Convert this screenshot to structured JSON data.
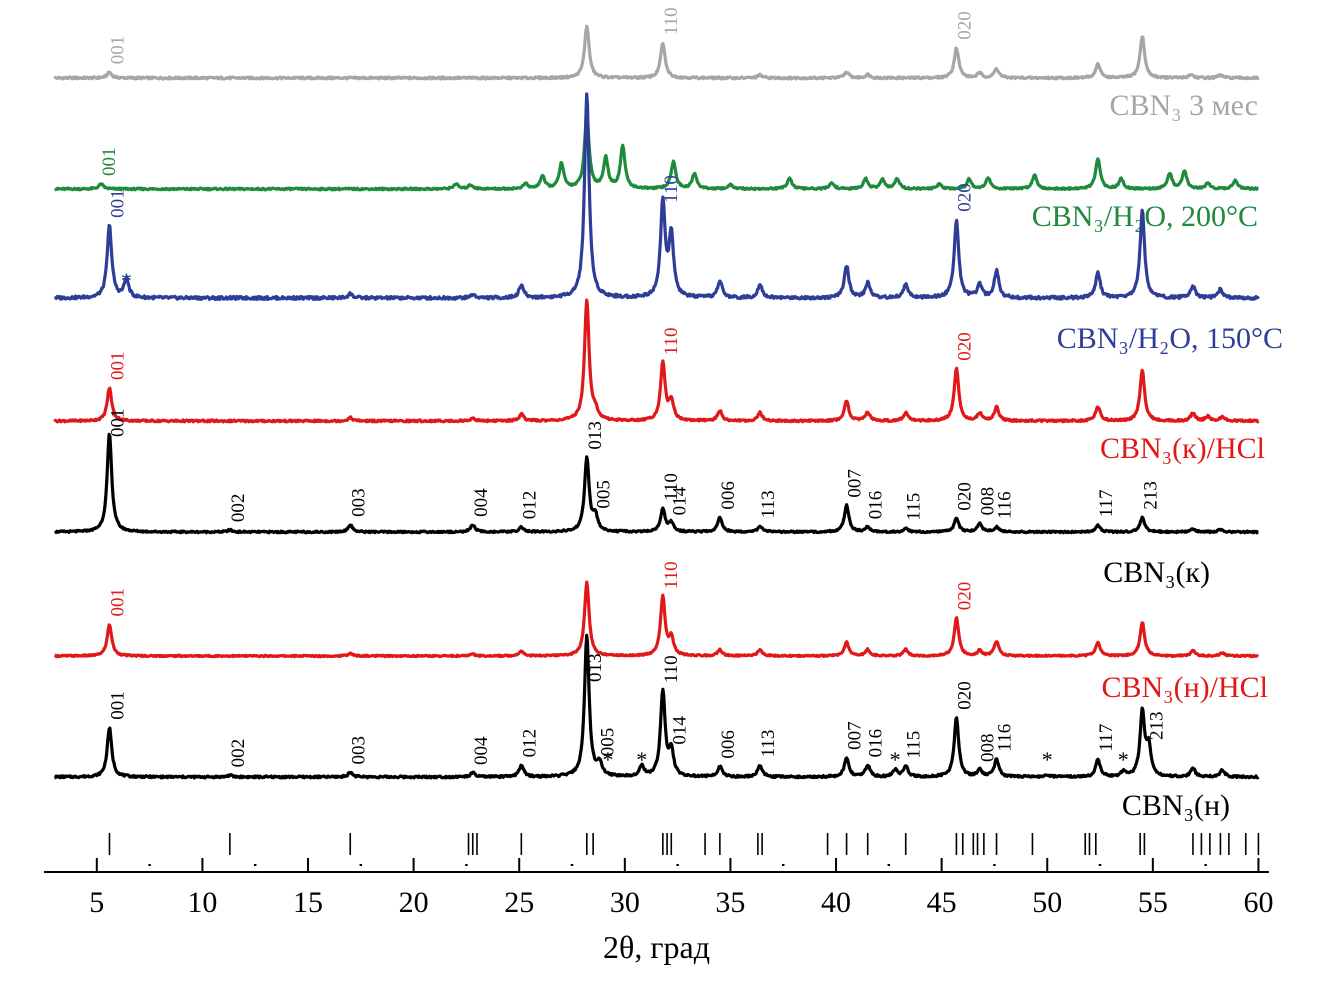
{
  "chart_data": {
    "type": "line",
    "xlabel": "2θ, град",
    "xlim": [
      2.5,
      60.5
    ],
    "x_ticks": [
      5,
      10,
      15,
      20,
      25,
      30,
      35,
      40,
      45,
      50,
      55,
      60
    ],
    "minor_ticks": [
      7.5,
      12.5,
      17.5,
      22.5,
      27.5,
      32.5,
      37.5,
      42.5,
      47.5,
      52.5,
      57.5
    ],
    "reference_lines": [
      5.6,
      11.3,
      17.0,
      22.6,
      22.8,
      23.0,
      25.1,
      28.2,
      28.5,
      31.8,
      32.0,
      32.2,
      33.8,
      34.5,
      36.3,
      36.5,
      39.6,
      40.5,
      41.5,
      43.3,
      45.7,
      46.0,
      46.5,
      46.7,
      47.0,
      47.6,
      49.3,
      51.8,
      52.0,
      52.3,
      54.4,
      54.6,
      56.9,
      57.3,
      57.7,
      58.2,
      58.6,
      59.4,
      60.0
    ],
    "series": [
      {
        "name": "CBN₃ 3 мес",
        "color": "#a6a6a6",
        "baseline": 0.0,
        "peaks": [
          [
            5.6,
            0.1
          ],
          [
            28.2,
            0.9
          ],
          [
            31.8,
            0.6
          ],
          [
            36.4,
            0.05
          ],
          [
            40.5,
            0.1
          ],
          [
            41.5,
            0.06
          ],
          [
            45.7,
            0.52
          ],
          [
            46.8,
            0.08
          ],
          [
            47.6,
            0.16
          ],
          [
            52.4,
            0.24
          ],
          [
            54.5,
            0.72
          ],
          [
            56.8,
            0.06
          ],
          [
            58.2,
            0.05
          ]
        ],
        "labels": [
          {
            "x": 5.6,
            "text": "001"
          },
          {
            "x": 31.8,
            "text": "110"
          },
          {
            "x": 45.7,
            "text": "020"
          }
        ],
        "stars": []
      },
      {
        "name": "CBN₃/H₂O, 200°C",
        "color": "#1e8a3c",
        "baseline": 0.0,
        "peaks": [
          [
            5.2,
            0.1
          ],
          [
            22.0,
            0.1
          ],
          [
            22.7,
            0.08
          ],
          [
            25.3,
            0.1
          ],
          [
            26.1,
            0.25
          ],
          [
            27.0,
            0.5
          ],
          [
            28.2,
            1.45
          ],
          [
            29.1,
            0.6
          ],
          [
            29.9,
            0.85
          ],
          [
            32.3,
            0.55
          ],
          [
            33.3,
            0.3
          ],
          [
            35.0,
            0.08
          ],
          [
            37.8,
            0.22
          ],
          [
            39.8,
            0.12
          ],
          [
            41.4,
            0.2
          ],
          [
            42.2,
            0.18
          ],
          [
            42.9,
            0.2
          ],
          [
            44.9,
            0.1
          ],
          [
            46.3,
            0.2
          ],
          [
            47.2,
            0.22
          ],
          [
            49.4,
            0.28
          ],
          [
            52.4,
            0.6
          ],
          [
            53.5,
            0.2
          ],
          [
            55.8,
            0.3
          ],
          [
            56.5,
            0.35
          ],
          [
            57.6,
            0.12
          ],
          [
            58.9,
            0.18
          ]
        ],
        "labels": [
          {
            "x": 5.2,
            "text": "001"
          }
        ],
        "stars": []
      },
      {
        "name": "CBN₃/H₂O, 150°C",
        "color": "#2e3d98",
        "baseline": 0.0,
        "peaks": [
          [
            5.6,
            0.85
          ],
          [
            6.4,
            0.22
          ],
          [
            17.0,
            0.05
          ],
          [
            22.8,
            0.04
          ],
          [
            25.1,
            0.15
          ],
          [
            28.2,
            2.4
          ],
          [
            31.8,
            1.12
          ],
          [
            32.2,
            0.72
          ],
          [
            34.5,
            0.2
          ],
          [
            36.4,
            0.16
          ],
          [
            40.5,
            0.38
          ],
          [
            41.5,
            0.18
          ],
          [
            43.3,
            0.16
          ],
          [
            45.7,
            0.92
          ],
          [
            46.8,
            0.15
          ],
          [
            47.6,
            0.32
          ],
          [
            52.4,
            0.3
          ],
          [
            54.5,
            1.02
          ],
          [
            56.9,
            0.14
          ],
          [
            58.2,
            0.1
          ]
        ],
        "labels": [
          {
            "x": 5.6,
            "text": "001"
          },
          {
            "x": 31.8,
            "text": "110"
          },
          {
            "x": 45.7,
            "text": "020"
          }
        ],
        "stars": [
          6.4
        ]
      },
      {
        "name": "CBN₃(к)/HCl",
        "color": "#e01818",
        "baseline": 0.0,
        "peaks": [
          [
            5.6,
            0.6
          ],
          [
            17.0,
            0.06
          ],
          [
            22.8,
            0.05
          ],
          [
            25.1,
            0.12
          ],
          [
            28.2,
            2.2
          ],
          [
            28.6,
            0.15
          ],
          [
            31.8,
            1.05
          ],
          [
            32.2,
            0.35
          ],
          [
            34.5,
            0.18
          ],
          [
            36.4,
            0.15
          ],
          [
            40.5,
            0.36
          ],
          [
            41.5,
            0.15
          ],
          [
            43.3,
            0.15
          ],
          [
            45.7,
            0.95
          ],
          [
            46.8,
            0.14
          ],
          [
            47.6,
            0.25
          ],
          [
            52.4,
            0.26
          ],
          [
            54.5,
            0.92
          ],
          [
            56.9,
            0.14
          ],
          [
            57.6,
            0.08
          ],
          [
            58.3,
            0.08
          ]
        ],
        "labels": [
          {
            "x": 5.6,
            "text": "001"
          },
          {
            "x": 31.8,
            "text": "110"
          },
          {
            "x": 45.7,
            "text": "020"
          }
        ],
        "stars": []
      },
      {
        "name": "CBN₃(к)",
        "color": "#000000",
        "baseline": 0.0,
        "peaks": [
          [
            5.6,
            2.05
          ],
          [
            11.3,
            0.04
          ],
          [
            17.0,
            0.15
          ],
          [
            22.8,
            0.15
          ],
          [
            25.1,
            0.1
          ],
          [
            28.2,
            1.55
          ],
          [
            28.6,
            0.32
          ],
          [
            31.8,
            0.48
          ],
          [
            32.2,
            0.18
          ],
          [
            34.5,
            0.3
          ],
          [
            36.4,
            0.12
          ],
          [
            40.5,
            0.55
          ],
          [
            41.5,
            0.1
          ],
          [
            43.3,
            0.07
          ],
          [
            45.7,
            0.28
          ],
          [
            46.8,
            0.18
          ],
          [
            47.6,
            0.1
          ],
          [
            52.4,
            0.14
          ],
          [
            54.5,
            0.3
          ],
          [
            56.9,
            0.06
          ],
          [
            58.2,
            0.05
          ]
        ],
        "labels": [
          {
            "x": 5.6,
            "text": "001"
          },
          {
            "x": 11.3,
            "text": "002"
          },
          {
            "x": 17.0,
            "text": "003"
          },
          {
            "x": 22.8,
            "text": "004"
          },
          {
            "x": 25.1,
            "text": "012"
          },
          {
            "x": 28.2,
            "text": "013"
          },
          {
            "x": 28.6,
            "text": "005"
          },
          {
            "x": 31.8,
            "text": "110"
          },
          {
            "x": 32.2,
            "text": "014"
          },
          {
            "x": 34.5,
            "text": "006"
          },
          {
            "x": 36.4,
            "text": "113"
          },
          {
            "x": 40.5,
            "text": "007"
          },
          {
            "x": 41.5,
            "text": "016"
          },
          {
            "x": 43.3,
            "text": "115"
          },
          {
            "x": 45.7,
            "text": "020"
          },
          {
            "x": 46.8,
            "text": "008"
          },
          {
            "x": 47.6,
            "text": "116"
          },
          {
            "x": 52.4,
            "text": "117"
          },
          {
            "x": 54.5,
            "text": "213"
          }
        ],
        "stars": []
      },
      {
        "name": "CBN₃(н)/HCl",
        "color": "#e01818",
        "baseline": 0.0,
        "peaks": [
          [
            5.6,
            0.75
          ],
          [
            17.0,
            0.06
          ],
          [
            22.8,
            0.05
          ],
          [
            25.1,
            0.12
          ],
          [
            28.2,
            1.75
          ],
          [
            31.8,
            1.4
          ],
          [
            32.2,
            0.4
          ],
          [
            34.5,
            0.15
          ],
          [
            36.4,
            0.15
          ],
          [
            40.5,
            0.32
          ],
          [
            41.5,
            0.15
          ],
          [
            43.3,
            0.15
          ],
          [
            45.7,
            0.9
          ],
          [
            46.8,
            0.12
          ],
          [
            47.6,
            0.35
          ],
          [
            52.4,
            0.32
          ],
          [
            54.5,
            0.8
          ],
          [
            56.9,
            0.12
          ],
          [
            58.3,
            0.08
          ]
        ],
        "labels": [
          {
            "x": 5.6,
            "text": "001"
          },
          {
            "x": 31.8,
            "text": "110"
          },
          {
            "x": 45.7,
            "text": "020"
          }
        ],
        "stars": []
      },
      {
        "name": "CBN₃(н)",
        "color": "#000000",
        "baseline": 0.0,
        "peaks": [
          [
            5.6,
            0.85
          ],
          [
            11.3,
            0.03
          ],
          [
            17.0,
            0.08
          ],
          [
            22.8,
            0.07
          ],
          [
            25.1,
            0.2
          ],
          [
            28.2,
            2.45
          ],
          [
            28.8,
            0.22
          ],
          [
            30.8,
            0.18
          ],
          [
            31.8,
            1.48
          ],
          [
            32.2,
            0.42
          ],
          [
            34.5,
            0.18
          ],
          [
            36.4,
            0.2
          ],
          [
            40.5,
            0.33
          ],
          [
            41.5,
            0.2
          ],
          [
            42.8,
            0.12
          ],
          [
            43.3,
            0.18
          ],
          [
            45.7,
            1.02
          ],
          [
            46.8,
            0.12
          ],
          [
            47.6,
            0.3
          ],
          [
            50.0,
            0.04
          ],
          [
            52.4,
            0.3
          ],
          [
            53.6,
            0.08
          ],
          [
            54.5,
            1.1
          ],
          [
            54.8,
            0.5
          ],
          [
            56.9,
            0.15
          ],
          [
            58.3,
            0.12
          ]
        ],
        "labels": [
          {
            "x": 5.6,
            "text": "001"
          },
          {
            "x": 11.3,
            "text": "002"
          },
          {
            "x": 17.0,
            "text": "003"
          },
          {
            "x": 22.8,
            "text": "004"
          },
          {
            "x": 25.1,
            "text": "012"
          },
          {
            "x": 28.2,
            "text": "013"
          },
          {
            "x": 28.8,
            "text": "005"
          },
          {
            "x": 31.8,
            "text": "110"
          },
          {
            "x": 32.2,
            "text": "014"
          },
          {
            "x": 34.5,
            "text": "006"
          },
          {
            "x": 36.4,
            "text": "113"
          },
          {
            "x": 40.5,
            "text": "007"
          },
          {
            "x": 41.5,
            "text": "016"
          },
          {
            "x": 43.3,
            "text": "115"
          },
          {
            "x": 45.7,
            "text": "020"
          },
          {
            "x": 46.8,
            "text": "008"
          },
          {
            "x": 47.6,
            "text": "116"
          },
          {
            "x": 52.4,
            "text": "117"
          },
          {
            "x": 54.8,
            "text": "213"
          }
        ],
        "stars": [
          29.2,
          30.8,
          42.8,
          50.0,
          53.6
        ]
      }
    ]
  }
}
